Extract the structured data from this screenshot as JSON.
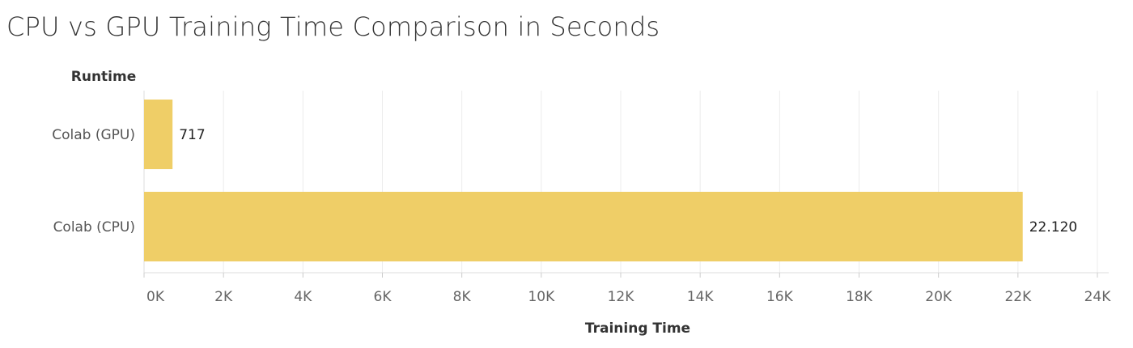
{
  "chart_data": {
    "type": "bar",
    "orientation": "horizontal",
    "title": "CPU vs GPU Training Time Comparison in Seconds",
    "row_header": "Runtime",
    "categories": [
      "Colab (GPU)",
      "Colab (CPU)"
    ],
    "values": [
      717,
      22120
    ],
    "value_labels": [
      "717",
      "22.120"
    ],
    "xlabel": "Training Time",
    "xlim": [
      0,
      24000
    ],
    "xticks": [
      0,
      2000,
      4000,
      6000,
      8000,
      10000,
      12000,
      14000,
      16000,
      18000,
      20000,
      22000,
      24000
    ],
    "xtick_labels": [
      "0K",
      "2K",
      "4K",
      "6K",
      "8K",
      "10K",
      "12K",
      "14K",
      "16K",
      "18K",
      "20K",
      "22K",
      "24K"
    ],
    "grid": true,
    "bar_color": "#efce67"
  }
}
